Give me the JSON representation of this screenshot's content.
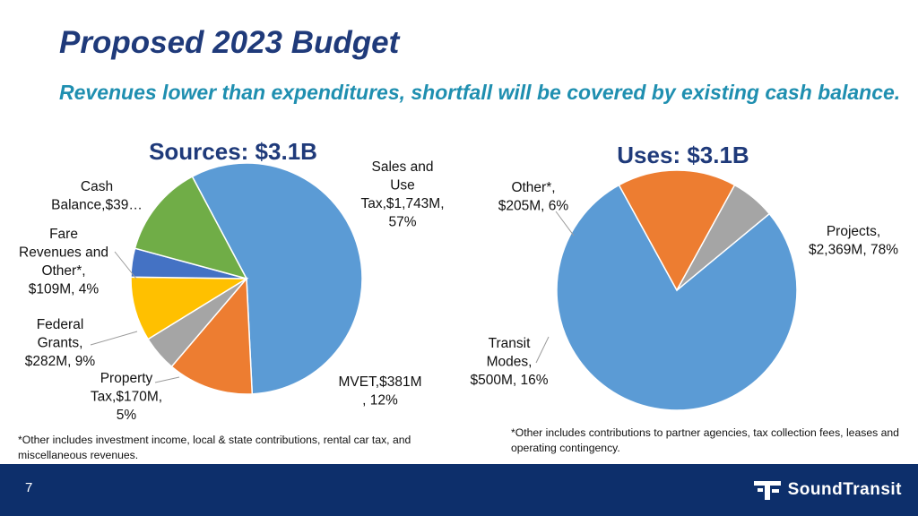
{
  "slide": {
    "title": "Proposed 2023 Budget",
    "subtitle": "Revenues lower than expenditures, shortfall will be covered by existing cash balance.",
    "page_number": "7",
    "logo_text": "SoundTransit",
    "note_sources": "*Other includes investment income, local & state contributions, rental car tax, and miscellaneous revenues.",
    "note_uses": "*Other includes contributions to partner agencies, tax collection fees, leases and operating contingency."
  },
  "colors": {
    "title": "#1f3a7a",
    "subtitle": "#1f8fb0",
    "footer": "#0d2f6b",
    "blue": "#5b9bd5",
    "orange": "#ed7d31",
    "gray": "#a5a5a5",
    "yellow": "#ffc000",
    "darkblue": "#4472c4",
    "green": "#70ad47"
  },
  "chart_data": [
    {
      "type": "pie",
      "title": "Sources: $3.1B",
      "slices": [
        {
          "label": "Sales and Use Tax",
          "amount": "$1,743M",
          "percent": 57,
          "color": "#5b9bd5",
          "label_lines": [
            "Sales and",
            "Use",
            "Tax,$1,743M,",
            "57%"
          ]
        },
        {
          "label": "MVET",
          "amount": "$381M",
          "percent": 12,
          "color": "#ed7d31",
          "label_lines": [
            "MVET,$381M",
            ", 12%"
          ]
        },
        {
          "label": "Property Tax",
          "amount": "$170M",
          "percent": 5,
          "color": "#a5a5a5",
          "label_lines": [
            "Property",
            "Tax,$170M,",
            "5%"
          ]
        },
        {
          "label": "Federal Grants",
          "amount": "$282M",
          "percent": 9,
          "color": "#ffc000",
          "label_lines": [
            "Federal",
            "Grants,",
            "$282M, 9%"
          ]
        },
        {
          "label": "Fare Revenues and Other*",
          "amount": "$109M",
          "percent": 4,
          "color": "#4472c4",
          "label_lines": [
            "Fare",
            "Revenues and",
            "Other*,",
            "$109M, 4%"
          ]
        },
        {
          "label": "Cash Balance",
          "amount": "$39…",
          "percent": 13,
          "color": "#70ad47",
          "label_lines": [
            "Cash",
            "Balance,$39…"
          ]
        }
      ]
    },
    {
      "type": "pie",
      "title": "Uses: $3.1B",
      "slices": [
        {
          "label": "Projects",
          "amount": "$2,369M",
          "percent": 78,
          "color": "#5b9bd5",
          "label_lines": [
            "Projects,",
            "$2,369M, 78%"
          ]
        },
        {
          "label": "Transit Modes",
          "amount": "$500M",
          "percent": 16,
          "color": "#ed7d31",
          "label_lines": [
            "Transit",
            "Modes,",
            "$500M, 16%"
          ]
        },
        {
          "label": "Other*",
          "amount": "$205M",
          "percent": 6,
          "color": "#a5a5a5",
          "label_lines": [
            "Other*,",
            "$205M, 6%"
          ]
        }
      ]
    }
  ]
}
